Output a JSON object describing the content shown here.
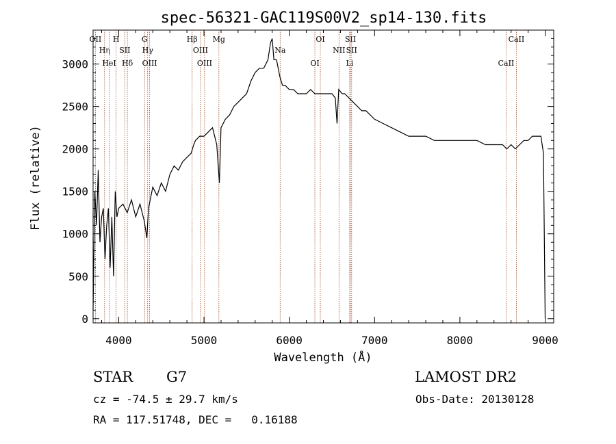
{
  "chart_data": {
    "type": "line",
    "title": "spec-56321-GAC119S00V2_sp14-130.fits",
    "xlabel": "Wavelength (Å)",
    "ylabel": "Flux (relative)",
    "xlim": [
      3700,
      9100
    ],
    "ylim": [
      -50,
      3400
    ],
    "xticks": [
      4000,
      5000,
      6000,
      7000,
      8000,
      9000
    ],
    "xtick_labels": [
      "4000",
      "5000",
      "6000",
      "7000",
      "8000",
      "9000"
    ],
    "yticks": [
      0,
      500,
      1000,
      1500,
      2000,
      2500,
      3000
    ],
    "ytick_labels": [
      "0",
      "500",
      "1000",
      "1500",
      "2000",
      "2500",
      "3000"
    ],
    "grid": false,
    "line_color": "#000000",
    "marker_color": "#a0522d",
    "series": [
      {
        "x": [
          3700,
          3720,
          3740,
          3760,
          3780,
          3800,
          3820,
          3840,
          3860,
          3880,
          3900,
          3920,
          3940,
          3960,
          3980,
          4000,
          4050,
          4100,
          4150,
          4200,
          4250,
          4300,
          4330,
          4350,
          4400,
          4450,
          4500,
          4550,
          4600,
          4650,
          4700,
          4750,
          4800,
          4850,
          4880,
          4900,
          4950,
          5000,
          5050,
          5100,
          5150,
          5180,
          5200,
          5250,
          5300,
          5350,
          5400,
          5450,
          5500,
          5550,
          5600,
          5650,
          5700,
          5750,
          5780,
          5800,
          5820,
          5850,
          5890,
          5920,
          5950,
          6000,
          6050,
          6100,
          6150,
          6200,
          6250,
          6300,
          6350,
          6400,
          6450,
          6500,
          6540,
          6560,
          6580,
          6620,
          6650,
          6700,
          6750,
          6800,
          6850,
          6900,
          6950,
          7000,
          7100,
          7200,
          7300,
          7400,
          7500,
          7600,
          7700,
          7800,
          7900,
          8000,
          8100,
          8200,
          8300,
          8400,
          8500,
          8550,
          8600,
          8650,
          8700,
          8750,
          8800,
          8850,
          8900,
          8950,
          8980,
          9000
        ],
        "y": [
          100,
          1500,
          1100,
          1750,
          900,
          1200,
          1300,
          700,
          1100,
          1300,
          600,
          1200,
          500,
          1500,
          1200,
          1300,
          1350,
          1250,
          1400,
          1200,
          1350,
          1150,
          950,
          1300,
          1550,
          1450,
          1600,
          1500,
          1700,
          1800,
          1750,
          1850,
          1900,
          1950,
          2050,
          2100,
          2150,
          2150,
          2200,
          2250,
          2050,
          1600,
          2250,
          2350,
          2400,
          2500,
          2550,
          2600,
          2650,
          2800,
          2900,
          2950,
          2950,
          3050,
          3250,
          3300,
          3050,
          3050,
          2850,
          2750,
          2750,
          2700,
          2700,
          2650,
          2650,
          2650,
          2700,
          2650,
          2650,
          2650,
          2650,
          2650,
          2600,
          2300,
          2700,
          2650,
          2650,
          2600,
          2550,
          2500,
          2450,
          2450,
          2400,
          2350,
          2300,
          2250,
          2200,
          2150,
          2150,
          2150,
          2100,
          2100,
          2100,
          2100,
          2100,
          2100,
          2050,
          2050,
          2050,
          2000,
          2050,
          2000,
          2050,
          2100,
          2100,
          2150,
          2150,
          2150,
          1950,
          0
        ]
      }
    ],
    "line_markers": [
      {
        "x": 3727,
        "label": "OII"
      },
      {
        "x": 3835,
        "label": "Hη"
      },
      {
        "x": 3889,
        "label": "HeI"
      },
      {
        "x": 3970,
        "label": "H"
      },
      {
        "x": 4072,
        "label": "SII"
      },
      {
        "x": 4102,
        "label": "Hδ"
      },
      {
        "x": 4304,
        "label": "G"
      },
      {
        "x": 4340,
        "label": "Hγ"
      },
      {
        "x": 4363,
        "label": "OIII"
      },
      {
        "x": 4861,
        "label": "Hβ"
      },
      {
        "x": 4959,
        "label": "OIII"
      },
      {
        "x": 5007,
        "label": "OIII"
      },
      {
        "x": 5175,
        "label": "Mg"
      },
      {
        "x": 5893,
        "label": "Na"
      },
      {
        "x": 6300,
        "label": "OI"
      },
      {
        "x": 6364,
        "label": "OI"
      },
      {
        "x": 6583,
        "label": "NII"
      },
      {
        "x": 6708,
        "label": "Li"
      },
      {
        "x": 6717,
        "label": "SII"
      },
      {
        "x": 6731,
        "label": "SII"
      },
      {
        "x": 8542,
        "label": "CaII"
      },
      {
        "x": 8662,
        "label": "CaII"
      }
    ]
  },
  "info": {
    "object_class": "STAR",
    "subclass": "G7",
    "survey": "LAMOST DR2",
    "cz": "cz = -74.5 ± 29.7 km/s",
    "obs_date": "Obs-Date: 20130128",
    "coords": "RA = 117.51748, DEC =   0.16188"
  }
}
